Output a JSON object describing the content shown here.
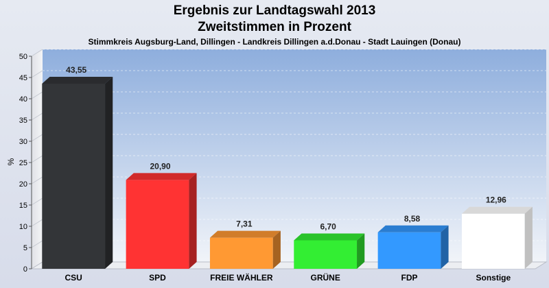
{
  "chart_data": {
    "type": "bar",
    "title": "Ergebnis zur Landtagswahl 2013",
    "subtitle_line1": "Zweitstimmen in Prozent",
    "subtitle": "Stimmkreis Augsburg-Land, Dillingen - Landkreis Dillingen a.d.Donau - Stadt Lauingen (Donau)",
    "ylabel": "%",
    "xlabel": "",
    "ylim": [
      0,
      50
    ],
    "yticks": [
      "0",
      "5",
      "10",
      "15",
      "20",
      "25",
      "30",
      "35",
      "40",
      "45",
      "50"
    ],
    "grid": true,
    "categories": [
      "CSU",
      "SPD",
      "FREIE WÄHLER",
      "GRÜNE",
      "FDP",
      "Sonstige"
    ],
    "values": [
      43.55,
      20.9,
      7.31,
      6.7,
      8.58,
      12.96
    ],
    "data_labels": [
      "43,55",
      "20,90",
      "7,31",
      "6,70",
      "8,58",
      "12,96"
    ],
    "colors": [
      "#333538",
      "#ff3333",
      "#ff9933",
      "#33ee33",
      "#3399ff",
      "#ffffff"
    ]
  }
}
